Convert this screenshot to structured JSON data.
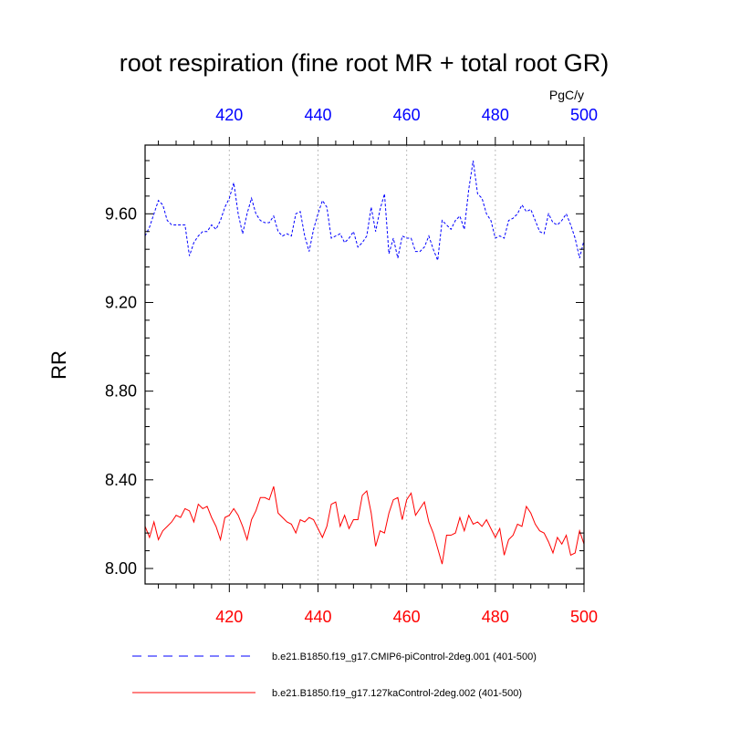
{
  "chart_data": {
    "type": "line",
    "title": "root respiration (fine root MR + total root GR)",
    "units": "PgC/y",
    "ylabel": "RR",
    "xlim": [
      401,
      500
    ],
    "ylim": [
      7.93,
      9.91
    ],
    "y_ticks": [
      8.0,
      8.4,
      8.8,
      9.2,
      9.6
    ],
    "y_tick_labels": [
      "8.00",
      "8.40",
      "8.80",
      "9.20",
      "9.60"
    ],
    "x_ticks": [
      420,
      440,
      460,
      480,
      500
    ],
    "x_tick_labels": [
      "420",
      "440",
      "460",
      "480",
      "500"
    ],
    "top_axis_color": "#0000ff",
    "bottom_axis_color": "#ff0000",
    "grid": "vertical dotted at 420, 440, 460, 480",
    "legend_position": "bottom",
    "series": [
      {
        "name": "b.e21.B1850.f19_g17.CMIP6-piControl-2deg.001 (401-500)",
        "color": "#0000ff",
        "style": "dashed",
        "x_start": 401,
        "values": [
          9.5,
          9.54,
          9.6,
          9.66,
          9.64,
          9.57,
          9.55,
          9.55,
          9.55,
          9.55,
          9.41,
          9.47,
          9.5,
          9.52,
          9.52,
          9.55,
          9.53,
          9.57,
          9.63,
          9.67,
          9.74,
          9.6,
          9.51,
          9.6,
          9.67,
          9.6,
          9.57,
          9.56,
          9.56,
          9.59,
          9.52,
          9.5,
          9.51,
          9.5,
          9.6,
          9.61,
          9.5,
          9.43,
          9.53,
          9.6,
          9.66,
          9.63,
          9.49,
          9.5,
          9.51,
          9.47,
          9.49,
          9.52,
          9.45,
          9.47,
          9.5,
          9.63,
          9.52,
          9.62,
          9.69,
          9.42,
          9.49,
          9.4,
          9.5,
          9.49,
          9.49,
          9.43,
          9.43,
          9.45,
          9.5,
          9.44,
          9.39,
          9.57,
          9.55,
          9.53,
          9.57,
          9.59,
          9.53,
          9.71,
          9.84,
          9.69,
          9.67,
          9.6,
          9.57,
          9.49,
          9.5,
          9.49,
          9.57,
          9.58,
          9.6,
          9.64,
          9.61,
          9.62,
          9.57,
          9.52,
          9.51,
          9.6,
          9.56,
          9.55,
          9.57,
          9.6,
          9.55,
          9.49,
          9.4,
          9.48
        ]
      },
      {
        "name": "b.e21.B1850.f19_g17.127kaControl-2deg.002 (401-500)",
        "color": "#ff0000",
        "style": "solid",
        "x_start": 401,
        "values": [
          8.19,
          8.14,
          8.21,
          8.13,
          8.17,
          8.19,
          8.21,
          8.24,
          8.23,
          8.27,
          8.26,
          8.21,
          8.29,
          8.27,
          8.28,
          8.23,
          8.19,
          8.13,
          8.23,
          8.24,
          8.27,
          8.24,
          8.19,
          8.13,
          8.22,
          8.26,
          8.32,
          8.32,
          8.31,
          8.37,
          8.25,
          8.23,
          8.21,
          8.2,
          8.16,
          8.22,
          8.21,
          8.23,
          8.22,
          8.18,
          8.14,
          8.19,
          8.29,
          8.3,
          8.19,
          8.24,
          8.18,
          8.22,
          8.22,
          8.33,
          8.35,
          8.25,
          8.1,
          8.17,
          8.16,
          8.25,
          8.31,
          8.32,
          8.22,
          8.31,
          8.34,
          8.24,
          8.27,
          8.3,
          8.21,
          8.16,
          8.09,
          8.02,
          8.15,
          8.15,
          8.16,
          8.23,
          8.17,
          8.24,
          8.2,
          8.21,
          8.19,
          8.22,
          8.18,
          8.14,
          8.18,
          8.06,
          8.13,
          8.15,
          8.2,
          8.19,
          8.28,
          8.25,
          8.2,
          8.17,
          8.16,
          8.12,
          8.07,
          8.14,
          8.11,
          8.15,
          8.06,
          8.07,
          8.17,
          8.11
        ]
      }
    ]
  }
}
